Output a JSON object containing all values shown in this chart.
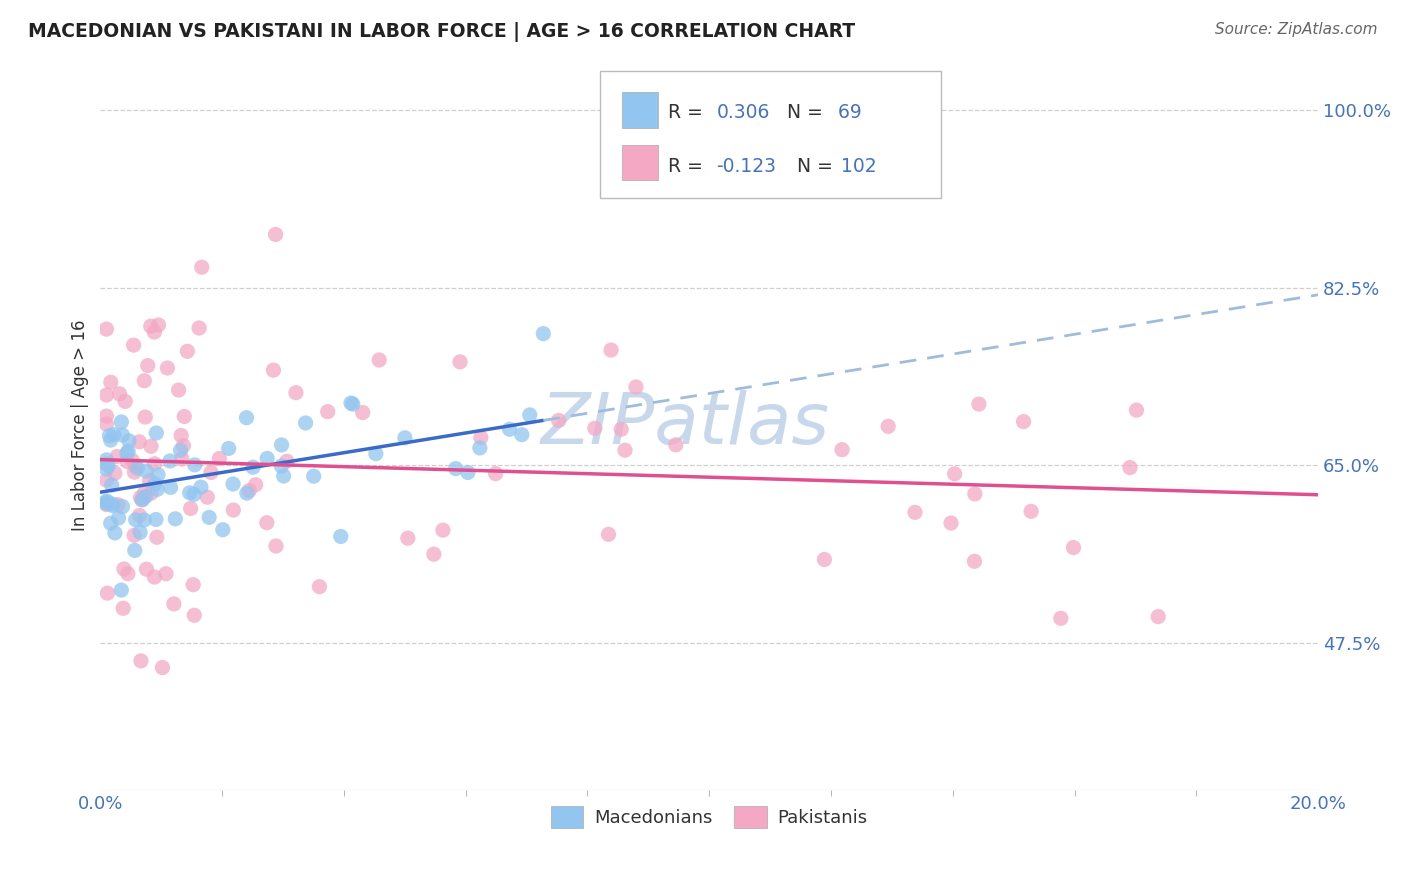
{
  "title": "MACEDONIAN VS PAKISTANI IN LABOR FORCE | AGE > 16 CORRELATION CHART",
  "source": "Source: ZipAtlas.com",
  "ylabel": "In Labor Force | Age > 16",
  "ytick_values": [
    0.475,
    0.65,
    0.825,
    1.0
  ],
  "ytick_labels": [
    "47.5%",
    "65.0%",
    "82.5%",
    "100.0%"
  ],
  "xlim": [
    0.0,
    0.2
  ],
  "ylim": [
    0.33,
    1.05
  ],
  "legend_R1": "R = ",
  "legend_R1_val": "0.306",
  "legend_N1": "  N = ",
  "legend_N1_val": " 69",
  "legend_R2": "R = ",
  "legend_R2_val": "-0.123",
  "legend_N2": "  N = ",
  "legend_N2_val": "102",
  "macedonian_color": "#92C5F0",
  "pakistani_color": "#F4A8C4",
  "trendline_mac_color": "#3A6BC8",
  "trendline_pak_color": "#E05090",
  "trendline_mac_dashed_color": "#A0BCDC",
  "background_color": "#FFFFFF",
  "grid_color": "#D0D0D0",
  "watermark_color": "#C8D8EC",
  "ytick_color": "#4472C4",
  "xtick_color": "#4472C4",
  "mac_seed": 42,
  "pak_seed": 7
}
